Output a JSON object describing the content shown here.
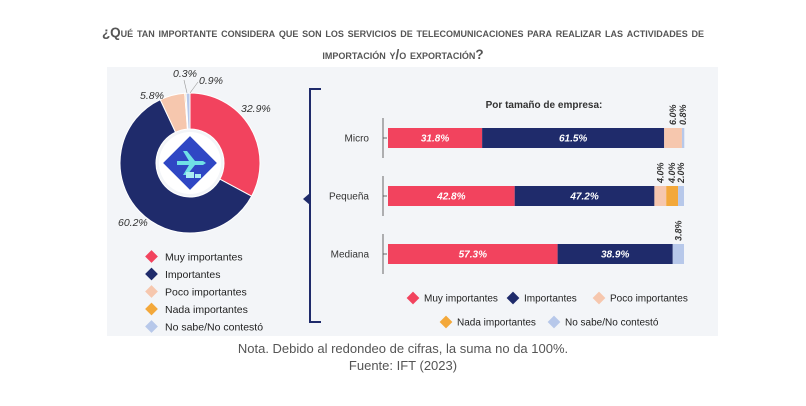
{
  "title_line1": "¿Qué tan importante considera que son los servicios de telecomunicaciones para realizar las actividades de",
  "title_line2": "importación y/o exportación?",
  "colors": {
    "muy_importantes": "#f2435e",
    "importantes": "#1f2b6b",
    "poco_importantes": "#f6c7ae",
    "nada_importantes": "#f3a83a",
    "no_sabe": "#b7c8ea"
  },
  "chart_data": [
    {
      "type": "pie",
      "style": "donut",
      "center_icon": "airplane-cargo-icon",
      "slices": [
        {
          "name": "Muy importantes",
          "value": 32.9,
          "label": "32.9%",
          "color": "#f2435e"
        },
        {
          "name": "Importantes",
          "value": 60.2,
          "label": "60.2%",
          "color": "#1f2b6b"
        },
        {
          "name": "Poco importantes",
          "value": 5.8,
          "label": "5.8%",
          "color": "#f6c7ae"
        },
        {
          "name": "Nada importantes",
          "value": 0.3,
          "label": "0.3%",
          "color": "#f3a83a"
        },
        {
          "name": "No sabe/No contestó",
          "value": 0.9,
          "label": "0.9%",
          "color": "#b7c8ea"
        }
      ],
      "legend": [
        "Muy importantes",
        "Importantes",
        "Poco importantes",
        "Nada importantes",
        "No sabe/No contestó"
      ],
      "legend_position": "bottom"
    },
    {
      "type": "bar",
      "orientation": "horizontal",
      "stacked": true,
      "title": "Por tamaño de empresa:",
      "categories": [
        "Micro",
        "Pequeña",
        "Mediana"
      ],
      "series": [
        {
          "name": "Muy importantes",
          "color": "#f2435e",
          "values": [
            31.8,
            42.8,
            57.3
          ],
          "labels": [
            "31.8%",
            "42.8%",
            "57.3%"
          ]
        },
        {
          "name": "Importantes",
          "color": "#1f2b6b",
          "values": [
            61.5,
            47.2,
            38.9
          ],
          "labels": [
            "61.5%",
            "47.2%",
            "38.9%"
          ]
        },
        {
          "name": "Poco importantes",
          "color": "#f6c7ae",
          "values": [
            6.0,
            4.0,
            0
          ],
          "labels": [
            "6.0%",
            "4.0%",
            ""
          ]
        },
        {
          "name": "Nada importantes",
          "color": "#f3a83a",
          "values": [
            0,
            4.0,
            0
          ],
          "labels": [
            "",
            "4.0%",
            ""
          ]
        },
        {
          "name": "No sabe/No contestó",
          "color": "#b7c8ea",
          "values": [
            0.8,
            2.0,
            3.8
          ],
          "labels": [
            "0.8%",
            "2.0%",
            "3.8%"
          ]
        }
      ],
      "xlim": [
        0,
        100
      ],
      "legend_position": "bottom"
    }
  ],
  "note": "Nota. Debido al redondeo de cifras, la suma no da 100%.",
  "source": "Fuente: IFT (2023)"
}
